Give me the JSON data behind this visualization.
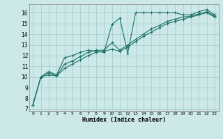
{
  "title": "",
  "xlabel": "Humidex (Indice chaleur)",
  "xlim": [
    -0.5,
    23.5
  ],
  "ylim": [
    6.8,
    16.8
  ],
  "xticks": [
    0,
    1,
    2,
    3,
    4,
    5,
    6,
    7,
    8,
    9,
    10,
    11,
    12,
    13,
    14,
    15,
    16,
    17,
    18,
    19,
    20,
    21,
    22,
    23
  ],
  "yticks": [
    7,
    8,
    9,
    10,
    11,
    12,
    13,
    14,
    15,
    16
  ],
  "bg_color": "#cce8e8",
  "grid_color": "#aacece",
  "line_color": "#1a7068",
  "series": [
    {
      "x": [
        0,
        1,
        2,
        3,
        4,
        5,
        6,
        7,
        8,
        9,
        10,
        11,
        12,
        13,
        14,
        15,
        16,
        17,
        18,
        19,
        20,
        21,
        22,
        23
      ],
      "y": [
        7.4,
        10.0,
        10.5,
        10.2,
        11.8,
        12.0,
        12.3,
        12.5,
        12.4,
        12.3,
        14.9,
        15.5,
        12.2,
        16.0,
        16.0,
        16.0,
        16.0,
        16.0,
        16.0,
        15.8,
        15.8,
        16.1,
        16.3,
        15.8
      ]
    },
    {
      "x": [
        0,
        1,
        2,
        3,
        4,
        5,
        6,
        7,
        8,
        9,
        10,
        11,
        12,
        13,
        14,
        15,
        16,
        17,
        18,
        19,
        20,
        21,
        22,
        23
      ],
      "y": [
        7.4,
        10.0,
        10.4,
        10.1,
        11.2,
        11.5,
        11.9,
        12.3,
        12.5,
        12.5,
        13.2,
        12.5,
        13.0,
        13.5,
        14.0,
        14.5,
        14.8,
        15.2,
        15.4,
        15.6,
        15.7,
        15.9,
        16.1,
        15.7
      ]
    },
    {
      "x": [
        0,
        1,
        2,
        3,
        4,
        5,
        6,
        7,
        8,
        9,
        10,
        11,
        12,
        13,
        14,
        15,
        16,
        17,
        18,
        19,
        20,
        21,
        22,
        23
      ],
      "y": [
        7.4,
        10.0,
        10.2,
        10.1,
        10.8,
        11.2,
        11.6,
        12.0,
        12.3,
        12.4,
        12.6,
        12.4,
        12.8,
        13.3,
        13.8,
        14.2,
        14.6,
        15.0,
        15.2,
        15.4,
        15.6,
        15.8,
        16.0,
        15.6
      ]
    }
  ]
}
